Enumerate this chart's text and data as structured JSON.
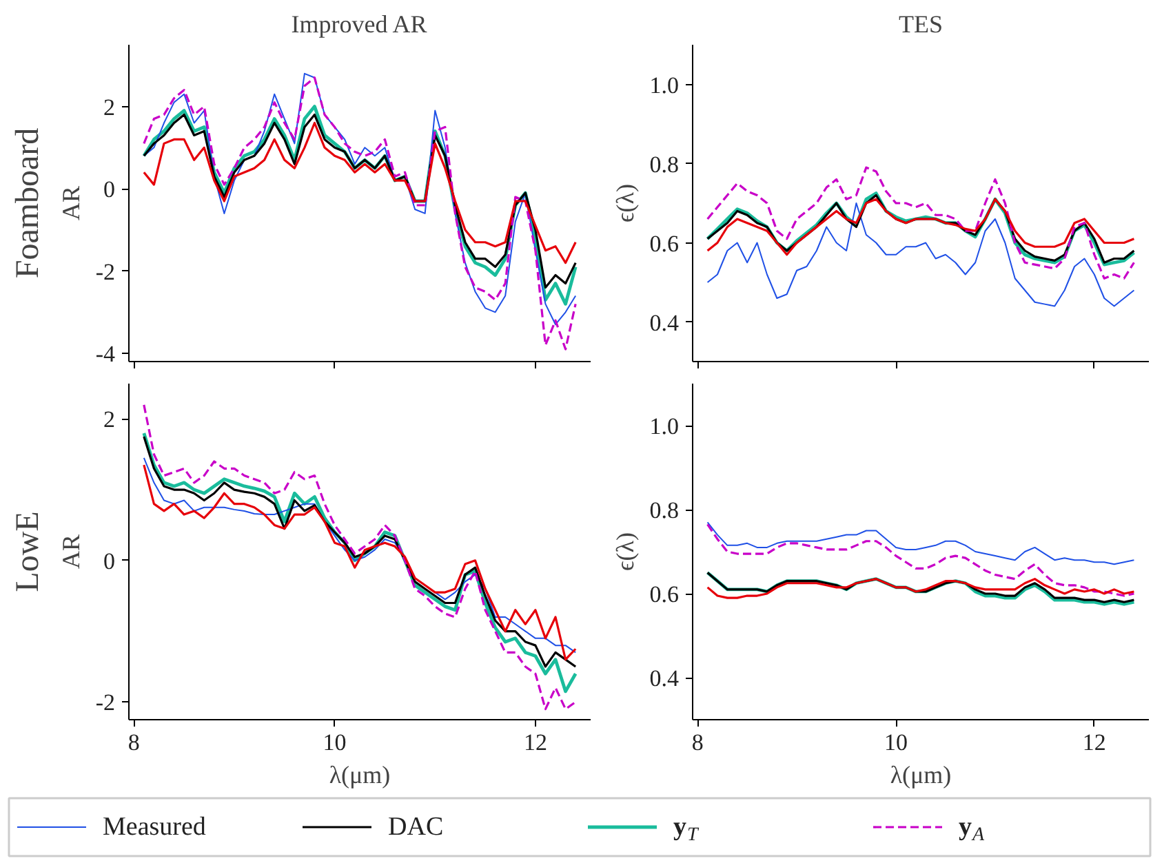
{
  "chart_data": [
    {
      "type": "line",
      "title": "Improved AR",
      "ylabel": "AR",
      "annotations": [
        "Foamboard"
      ],
      "x": [
        8.1,
        8.2,
        8.3,
        8.4,
        8.5,
        8.6,
        8.7,
        8.8,
        8.9,
        9.0,
        9.1,
        9.2,
        9.3,
        9.4,
        9.5,
        9.6,
        9.7,
        9.8,
        9.9,
        10.0,
        10.1,
        10.2,
        10.3,
        10.4,
        10.5,
        10.6,
        10.7,
        10.8,
        10.9,
        11.0,
        11.1,
        11.2,
        11.3,
        11.4,
        11.5,
        11.6,
        11.7,
        11.8,
        11.9,
        12.0,
        12.1,
        12.2,
        12.3,
        12.4
      ],
      "xlim": [
        7.95,
        12.55
      ],
      "xticks": [
        8,
        10,
        12
      ],
      "ylim": [
        -4.2,
        3.5
      ],
      "yticks": [
        -4,
        -2,
        0,
        2
      ],
      "tick_labels": "y",
      "grid": false,
      "legend": "bottom",
      "series": [
        {
          "name": "Measured",
          "color": "#1f50e6",
          "values": [
            0.8,
            1.0,
            1.6,
            2.1,
            2.3,
            1.6,
            1.9,
            0.3,
            -0.6,
            0.2,
            0.7,
            0.8,
            1.4,
            2.3,
            1.7,
            1.1,
            2.8,
            2.7,
            1.8,
            1.5,
            1.2,
            0.6,
            1.0,
            0.8,
            1.0,
            0.2,
            0.3,
            -0.5,
            -0.6,
            1.9,
            1.0,
            -0.6,
            -1.8,
            -2.5,
            -2.9,
            -3.0,
            -2.6,
            -0.8,
            -0.1,
            -1.5,
            -2.8,
            -3.3,
            -3.0,
            -2.6
          ]
        },
        {
          "name": "DAC",
          "color": "#000000",
          "values": [
            0.8,
            1.1,
            1.3,
            1.6,
            1.8,
            1.3,
            1.4,
            0.3,
            -0.2,
            0.4,
            0.7,
            0.8,
            1.1,
            1.6,
            1.2,
            0.6,
            1.5,
            1.8,
            1.2,
            1.0,
            0.9,
            0.5,
            0.7,
            0.5,
            0.8,
            0.2,
            0.3,
            -0.3,
            -0.3,
            1.3,
            0.8,
            -0.4,
            -1.3,
            -1.7,
            -1.7,
            -1.9,
            -1.6,
            -0.4,
            -0.1,
            -1.0,
            -2.4,
            -2.1,
            -2.3,
            -1.8
          ]
        },
        {
          "name": "y$_{T}$",
          "color": "#1abc9c",
          "values": [
            0.8,
            1.2,
            1.4,
            1.7,
            1.9,
            1.4,
            1.5,
            0.4,
            -0.1,
            0.5,
            0.8,
            0.9,
            1.2,
            1.7,
            1.3,
            0.7,
            1.7,
            2.0,
            1.3,
            1.1,
            0.9,
            0.5,
            0.7,
            0.5,
            0.8,
            0.2,
            0.3,
            -0.3,
            -0.3,
            1.4,
            0.8,
            -0.5,
            -1.4,
            -1.8,
            -1.9,
            -2.1,
            -1.7,
            -0.4,
            -0.1,
            -1.2,
            -2.7,
            -2.3,
            -2.8,
            -1.9
          ]
        },
        {
          "name": "y$_{A}$",
          "color": "#c800c8",
          "line_style": "dashed",
          "values": [
            1.1,
            1.7,
            1.8,
            2.2,
            2.4,
            1.8,
            2.0,
            0.6,
            0.1,
            0.5,
            1.0,
            1.2,
            1.5,
            2.1,
            1.6,
            1.2,
            2.5,
            2.7,
            1.8,
            1.5,
            1.1,
            0.9,
            0.8,
            0.9,
            1.2,
            0.3,
            0.4,
            -0.4,
            -0.4,
            1.4,
            1.5,
            -0.6,
            -1.9,
            -2.4,
            -2.5,
            -2.7,
            -2.3,
            -0.2,
            -0.3,
            -1.5,
            -3.8,
            -3.2,
            -3.9,
            -2.8
          ]
        },
        {
          "color": "#e6000a",
          "values": [
            0.4,
            0.1,
            1.1,
            1.2,
            1.2,
            0.7,
            1.0,
            0.2,
            -0.3,
            0.3,
            0.4,
            0.5,
            0.7,
            1.2,
            0.7,
            0.5,
            1.0,
            1.6,
            1.0,
            0.8,
            0.7,
            0.4,
            0.6,
            0.4,
            0.6,
            0.2,
            0.2,
            -0.3,
            -0.3,
            1.1,
            0.5,
            -0.3,
            -1.0,
            -1.3,
            -1.3,
            -1.4,
            -1.3,
            -0.3,
            -0.3,
            -0.9,
            -1.5,
            -1.4,
            -1.8,
            -1.3
          ]
        }
      ]
    },
    {
      "type": "line",
      "title": "TES",
      "ylabel": "ϵ(λ)",
      "x": [
        8.1,
        8.2,
        8.3,
        8.4,
        8.5,
        8.6,
        8.7,
        8.8,
        8.9,
        9.0,
        9.1,
        9.2,
        9.3,
        9.4,
        9.5,
        9.6,
        9.7,
        9.8,
        9.9,
        10.0,
        10.1,
        10.2,
        10.3,
        10.4,
        10.5,
        10.6,
        10.7,
        10.8,
        10.9,
        11.0,
        11.1,
        11.2,
        11.3,
        11.4,
        11.5,
        11.6,
        11.7,
        11.8,
        11.9,
        12.0,
        12.1,
        12.2,
        12.3,
        12.4
      ],
      "xlim": [
        7.95,
        12.55
      ],
      "xticks": [
        8,
        10,
        12
      ],
      "ylim": [
        0.3,
        1.1
      ],
      "yticks": [
        0.4,
        0.6,
        0.8,
        {
          "value": 1.0,
          "label": "1.0"
        }
      ],
      "tick_labels": "y",
      "grid": false,
      "series": [
        {
          "color": "#1f50e6",
          "values": [
            0.5,
            0.52,
            0.58,
            0.6,
            0.55,
            0.6,
            0.52,
            0.46,
            0.47,
            0.53,
            0.54,
            0.58,
            0.64,
            0.6,
            0.58,
            0.7,
            0.62,
            0.6,
            0.57,
            0.57,
            0.59,
            0.59,
            0.6,
            0.56,
            0.57,
            0.55,
            0.52,
            0.55,
            0.63,
            0.66,
            0.6,
            0.51,
            0.48,
            0.45,
            0.445,
            0.44,
            0.48,
            0.54,
            0.56,
            0.52,
            0.46,
            0.44,
            0.46,
            0.48
          ]
        },
        {
          "color": "#000000",
          "values": [
            0.61,
            0.63,
            0.65,
            0.68,
            0.67,
            0.65,
            0.64,
            0.6,
            0.58,
            0.6,
            0.62,
            0.64,
            0.67,
            0.7,
            0.66,
            0.64,
            0.7,
            0.72,
            0.68,
            0.66,
            0.65,
            0.66,
            0.66,
            0.66,
            0.65,
            0.65,
            0.63,
            0.62,
            0.66,
            0.71,
            0.68,
            0.61,
            0.58,
            0.565,
            0.56,
            0.555,
            0.57,
            0.63,
            0.65,
            0.61,
            0.55,
            0.56,
            0.56,
            0.58
          ]
        },
        {
          "color": "#1abc9c",
          "values": [
            0.61,
            0.635,
            0.66,
            0.685,
            0.675,
            0.655,
            0.64,
            0.6,
            0.58,
            0.605,
            0.625,
            0.645,
            0.675,
            0.7,
            0.665,
            0.645,
            0.71,
            0.725,
            0.68,
            0.665,
            0.655,
            0.66,
            0.665,
            0.66,
            0.65,
            0.65,
            0.63,
            0.615,
            0.66,
            0.71,
            0.675,
            0.6,
            0.57,
            0.56,
            0.555,
            0.55,
            0.565,
            0.63,
            0.645,
            0.6,
            0.545,
            0.55,
            0.555,
            0.575
          ]
        },
        {
          "color": "#c800c8",
          "line_style": "dashed",
          "values": [
            0.66,
            0.69,
            0.72,
            0.75,
            0.73,
            0.72,
            0.7,
            0.63,
            0.61,
            0.66,
            0.68,
            0.7,
            0.74,
            0.76,
            0.71,
            0.72,
            0.79,
            0.78,
            0.73,
            0.7,
            0.7,
            0.69,
            0.7,
            0.67,
            0.67,
            0.66,
            0.63,
            0.63,
            0.7,
            0.76,
            0.7,
            0.6,
            0.55,
            0.545,
            0.54,
            0.535,
            0.56,
            0.64,
            0.65,
            0.57,
            0.51,
            0.52,
            0.51,
            0.55
          ]
        },
        {
          "color": "#e6000a",
          "values": [
            0.58,
            0.6,
            0.64,
            0.66,
            0.65,
            0.64,
            0.63,
            0.6,
            0.57,
            0.6,
            0.62,
            0.64,
            0.66,
            0.68,
            0.66,
            0.65,
            0.7,
            0.71,
            0.68,
            0.66,
            0.65,
            0.66,
            0.66,
            0.66,
            0.65,
            0.645,
            0.635,
            0.63,
            0.66,
            0.71,
            0.68,
            0.63,
            0.6,
            0.59,
            0.59,
            0.59,
            0.6,
            0.65,
            0.66,
            0.63,
            0.6,
            0.6,
            0.6,
            0.61
          ]
        }
      ]
    },
    {
      "type": "line",
      "ylabel": "AR",
      "xlabel": "λ(μm)",
      "annotations": [
        "LowE"
      ],
      "x": [
        8.1,
        8.2,
        8.3,
        8.4,
        8.5,
        8.6,
        8.7,
        8.8,
        8.9,
        9.0,
        9.1,
        9.2,
        9.3,
        9.4,
        9.5,
        9.6,
        9.7,
        9.8,
        9.9,
        10.0,
        10.1,
        10.2,
        10.3,
        10.4,
        10.5,
        10.6,
        10.7,
        10.8,
        10.9,
        11.0,
        11.1,
        11.2,
        11.3,
        11.4,
        11.5,
        11.6,
        11.7,
        11.8,
        11.9,
        12.0,
        12.1,
        12.2,
        12.3,
        12.4
      ],
      "xlim": [
        7.95,
        12.55
      ],
      "xticks": [
        8,
        10,
        12
      ],
      "ylim": [
        -2.25,
        2.5
      ],
      "yticks": [
        -2,
        0,
        2
      ],
      "grid": false,
      "series": [
        {
          "color": "#1f50e6",
          "values": [
            1.45,
            1.1,
            0.85,
            0.8,
            0.85,
            0.7,
            0.75,
            0.75,
            0.75,
            0.72,
            0.7,
            0.66,
            0.65,
            0.65,
            0.7,
            0.75,
            0.8,
            0.8,
            0.55,
            0.35,
            0.15,
            0.0,
            0.05,
            0.15,
            0.3,
            0.25,
            0.05,
            -0.25,
            -0.35,
            -0.45,
            -0.55,
            -0.45,
            -0.3,
            -0.2,
            -0.4,
            -0.8,
            -0.8,
            -0.9,
            -1.0,
            -1.1,
            -1.1,
            -1.2,
            -1.2,
            -1.3
          ]
        },
        {
          "color": "#000000",
          "values": [
            1.75,
            1.3,
            1.05,
            1.0,
            1.0,
            0.95,
            0.85,
            0.95,
            1.1,
            1.0,
            0.97,
            0.95,
            0.9,
            0.8,
            0.45,
            0.85,
            0.7,
            0.78,
            0.55,
            0.4,
            0.25,
            0.05,
            0.1,
            0.2,
            0.35,
            0.3,
            0.0,
            -0.3,
            -0.4,
            -0.5,
            -0.6,
            -0.6,
            -0.2,
            -0.1,
            -0.5,
            -0.85,
            -1.0,
            -1.0,
            -1.15,
            -1.2,
            -1.5,
            -1.3,
            -1.4,
            -1.5
          ]
        },
        {
          "color": "#1abc9c",
          "values": [
            1.8,
            1.35,
            1.1,
            1.05,
            1.1,
            1.0,
            0.95,
            1.05,
            1.15,
            1.1,
            1.05,
            1.02,
            0.98,
            0.9,
            0.55,
            0.95,
            0.8,
            0.9,
            0.6,
            0.4,
            0.25,
            0.0,
            0.1,
            0.2,
            0.4,
            0.35,
            0.0,
            -0.35,
            -0.45,
            -0.55,
            -0.65,
            -0.7,
            -0.2,
            -0.15,
            -0.6,
            -0.95,
            -1.15,
            -1.1,
            -1.3,
            -1.35,
            -1.6,
            -1.4,
            -1.85,
            -1.6
          ]
        },
        {
          "color": "#c800c8",
          "line_style": "dashed",
          "values": [
            2.2,
            1.5,
            1.2,
            1.25,
            1.3,
            1.1,
            1.2,
            1.4,
            1.3,
            1.3,
            1.2,
            1.15,
            1.1,
            0.95,
            1.0,
            1.25,
            1.15,
            1.2,
            0.8,
            0.5,
            0.3,
            0.1,
            0.2,
            0.3,
            0.5,
            0.35,
            0.0,
            -0.4,
            -0.5,
            -0.65,
            -0.75,
            -0.8,
            -0.4,
            -0.15,
            -0.7,
            -1.0,
            -1.3,
            -1.3,
            -1.5,
            -1.6,
            -2.1,
            -1.8,
            -2.1,
            -2.0
          ]
        },
        {
          "color": "#e6000a",
          "values": [
            1.35,
            0.8,
            0.7,
            0.8,
            0.65,
            0.7,
            0.6,
            0.75,
            0.95,
            0.8,
            0.8,
            0.75,
            0.65,
            0.5,
            0.45,
            0.65,
            0.65,
            0.75,
            0.55,
            0.25,
            0.2,
            -0.1,
            0.15,
            0.2,
            0.25,
            0.2,
            0.05,
            -0.25,
            -0.35,
            -0.45,
            -0.45,
            -0.4,
            -0.05,
            0.0,
            -0.4,
            -0.7,
            -1.0,
            -0.7,
            -0.9,
            -0.7,
            -1.1,
            -0.8,
            -1.4,
            -1.25
          ]
        }
      ]
    },
    {
      "type": "line",
      "ylabel": "ϵ(λ)",
      "xlabel": "λ(μm)",
      "x": [
        8.1,
        8.2,
        8.3,
        8.4,
        8.5,
        8.6,
        8.7,
        8.8,
        8.9,
        9.0,
        9.1,
        9.2,
        9.3,
        9.4,
        9.5,
        9.6,
        9.7,
        9.8,
        9.9,
        10.0,
        10.1,
        10.2,
        10.3,
        10.4,
        10.5,
        10.6,
        10.7,
        10.8,
        10.9,
        11.0,
        11.1,
        11.2,
        11.3,
        11.4,
        11.5,
        11.6,
        11.7,
        11.8,
        11.9,
        12.0,
        12.1,
        12.2,
        12.3,
        12.4
      ],
      "xlim": [
        7.95,
        12.55
      ],
      "xticks": [
        8,
        10,
        12
      ],
      "ylim": [
        0.3,
        1.1
      ],
      "yticks": [
        0.4,
        0.6,
        0.8,
        {
          "value": 1.0,
          "label": "1.0"
        }
      ],
      "grid": false,
      "series": [
        {
          "color": "#1f50e6",
          "values": [
            0.77,
            0.74,
            0.715,
            0.715,
            0.72,
            0.71,
            0.71,
            0.72,
            0.725,
            0.725,
            0.725,
            0.725,
            0.73,
            0.735,
            0.74,
            0.74,
            0.75,
            0.75,
            0.73,
            0.71,
            0.705,
            0.705,
            0.71,
            0.715,
            0.725,
            0.725,
            0.715,
            0.7,
            0.695,
            0.69,
            0.685,
            0.68,
            0.7,
            0.71,
            0.695,
            0.68,
            0.685,
            0.68,
            0.68,
            0.675,
            0.675,
            0.67,
            0.675,
            0.68
          ]
        },
        {
          "color": "#000000",
          "values": [
            0.65,
            0.63,
            0.61,
            0.61,
            0.61,
            0.61,
            0.605,
            0.62,
            0.63,
            0.63,
            0.63,
            0.63,
            0.625,
            0.62,
            0.61,
            0.625,
            0.63,
            0.635,
            0.625,
            0.615,
            0.615,
            0.605,
            0.605,
            0.615,
            0.625,
            0.63,
            0.625,
            0.61,
            0.6,
            0.6,
            0.595,
            0.595,
            0.615,
            0.625,
            0.61,
            0.59,
            0.59,
            0.59,
            0.585,
            0.585,
            0.58,
            0.585,
            0.58,
            0.585
          ]
        },
        {
          "color": "#1abc9c",
          "values": [
            0.65,
            0.63,
            0.61,
            0.61,
            0.61,
            0.61,
            0.605,
            0.62,
            0.63,
            0.63,
            0.63,
            0.63,
            0.625,
            0.62,
            0.61,
            0.625,
            0.63,
            0.635,
            0.625,
            0.615,
            0.615,
            0.605,
            0.605,
            0.615,
            0.625,
            0.63,
            0.625,
            0.605,
            0.595,
            0.595,
            0.59,
            0.59,
            0.61,
            0.62,
            0.605,
            0.585,
            0.585,
            0.585,
            0.58,
            0.58,
            0.575,
            0.58,
            0.575,
            0.58
          ]
        },
        {
          "color": "#c800c8",
          "line_style": "dashed",
          "values": [
            0.765,
            0.73,
            0.7,
            0.695,
            0.695,
            0.695,
            0.695,
            0.71,
            0.72,
            0.72,
            0.715,
            0.71,
            0.705,
            0.705,
            0.705,
            0.715,
            0.725,
            0.725,
            0.71,
            0.69,
            0.675,
            0.66,
            0.66,
            0.67,
            0.685,
            0.69,
            0.685,
            0.67,
            0.655,
            0.645,
            0.64,
            0.635,
            0.655,
            0.67,
            0.645,
            0.625,
            0.62,
            0.62,
            0.615,
            0.605,
            0.605,
            0.6,
            0.595,
            0.6
          ]
        },
        {
          "color": "#e6000a",
          "values": [
            0.615,
            0.595,
            0.59,
            0.59,
            0.595,
            0.595,
            0.6,
            0.615,
            0.625,
            0.625,
            0.625,
            0.625,
            0.62,
            0.615,
            0.615,
            0.625,
            0.63,
            0.635,
            0.625,
            0.615,
            0.615,
            0.605,
            0.61,
            0.62,
            0.63,
            0.63,
            0.625,
            0.615,
            0.61,
            0.61,
            0.61,
            0.61,
            0.625,
            0.635,
            0.62,
            0.61,
            0.6,
            0.61,
            0.605,
            0.61,
            0.6,
            0.61,
            0.6,
            0.605
          ]
        }
      ]
    }
  ]
}
